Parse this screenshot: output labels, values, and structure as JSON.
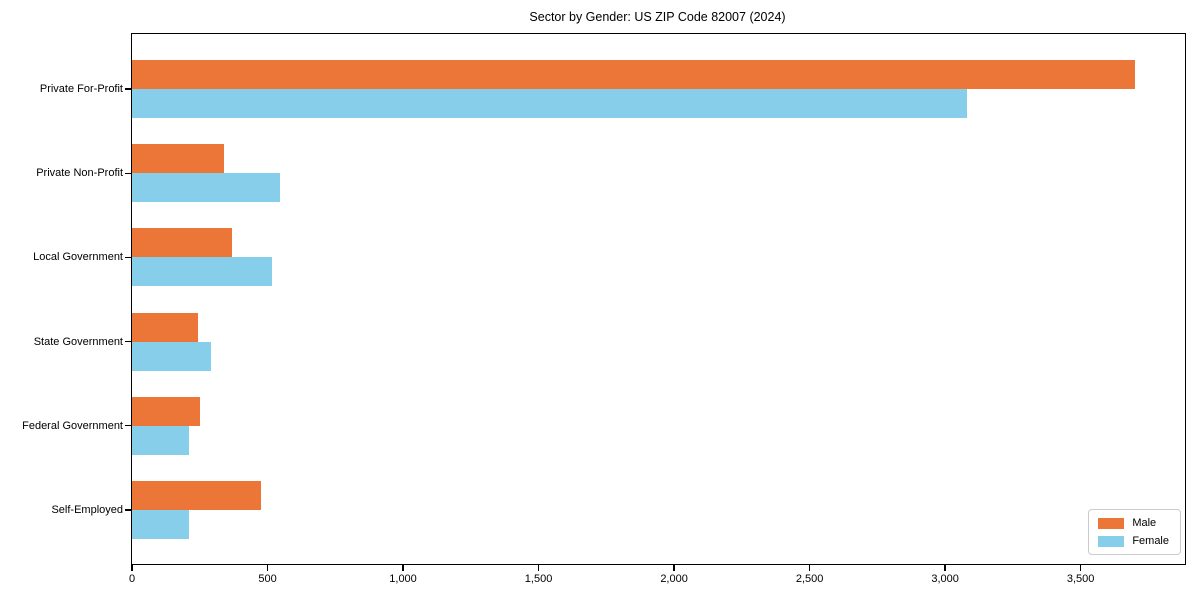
{
  "chart_data": {
    "type": "bar",
    "orientation": "horizontal",
    "title": "Sector by Gender: US ZIP Code 82007 (2024)",
    "categories": [
      "Private For-Profit",
      "Private Non-Profit",
      "Local Government",
      "State Government",
      "Federal Government",
      "Self-Employed"
    ],
    "series": [
      {
        "name": "Male",
        "color": "#ec7637",
        "values": [
          3700,
          340,
          370,
          245,
          250,
          475
        ]
      },
      {
        "name": "Female",
        "color": "#87ceeb",
        "values": [
          3080,
          545,
          515,
          290,
          210,
          210
        ]
      }
    ],
    "xticks": [
      0,
      500,
      1000,
      1500,
      2000,
      2500,
      3000,
      3500
    ],
    "xlim": [
      0,
      3885
    ],
    "xlabel": "",
    "ylabel": "",
    "grid": false,
    "legend_position": "lower right",
    "background_color": "#ffffff",
    "spine_color": "#000000"
  }
}
